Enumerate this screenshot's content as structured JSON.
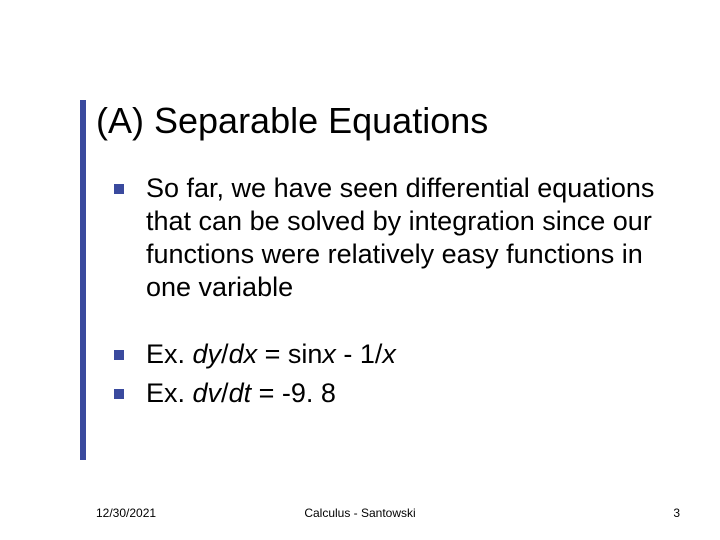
{
  "accent_color": "#3a4a9e",
  "title": "(A) Separable Equations",
  "bullets": [
    {
      "segments": [
        {
          "text": "So far, we have seen differential equations that can be solved by integration since our functions were relatively easy functions in one variable",
          "italic": false
        }
      ],
      "gap_before": false
    },
    {
      "segments": [
        {
          "text": "Ex. ",
          "italic": false
        },
        {
          "text": "dy",
          "italic": true
        },
        {
          "text": "/",
          "italic": false
        },
        {
          "text": "dx",
          "italic": true
        },
        {
          "text": " = sin",
          "italic": false
        },
        {
          "text": "x",
          "italic": true
        },
        {
          "text": " - 1/",
          "italic": false
        },
        {
          "text": "x",
          "italic": true
        }
      ],
      "gap_before": true
    },
    {
      "segments": [
        {
          "text": "Ex. ",
          "italic": false
        },
        {
          "text": "dv",
          "italic": true
        },
        {
          "text": "/",
          "italic": false
        },
        {
          "text": "dt",
          "italic": true
        },
        {
          "text": " = -9. 8",
          "italic": false
        }
      ],
      "gap_before": false
    }
  ],
  "footer": {
    "date": "12/30/2021",
    "center": "Calculus - Santowski",
    "page": "3"
  }
}
